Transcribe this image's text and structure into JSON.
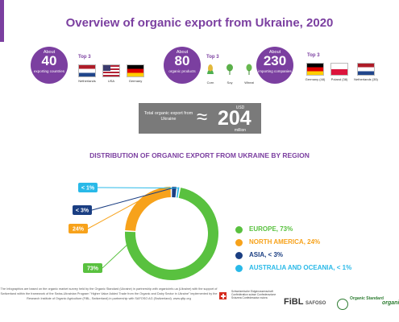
{
  "title": "Overview of organic export from Ukraine, 2020",
  "stats": [
    {
      "about": "About",
      "value": "40",
      "caption": "exporting countries",
      "top3_label": "Top 3",
      "items": [
        {
          "name": "Netherlands",
          "icon": "netherlands-flag-icon"
        },
        {
          "name": "USA",
          "icon": "usa-flag-icon"
        },
        {
          "name": "Germany",
          "icon": "germany-flag-icon"
        }
      ]
    },
    {
      "about": "About",
      "value": "80",
      "caption": "organic products",
      "top3_label": "Top 3",
      "items": [
        {
          "name": "Corn",
          "icon": "corn-icon"
        },
        {
          "name": "Soy",
          "icon": "soy-icon"
        },
        {
          "name": "Wheat",
          "icon": "wheat-icon"
        }
      ]
    },
    {
      "about": "About",
      "value": "230",
      "caption": "importing companies",
      "top3_label": "Top 3",
      "items": [
        {
          "name": "Germany (48)",
          "icon": "germany-flag-icon"
        },
        {
          "name": "Poland (38)",
          "icon": "poland-flag-icon"
        },
        {
          "name": "Netherlands (35)",
          "icon": "netherlands-flag-icon"
        }
      ]
    }
  ],
  "total": {
    "label": "Total organic export from Ukraine",
    "approx": "≈",
    "currency": "USD",
    "value": "204",
    "unit": "million"
  },
  "chart_data": {
    "type": "pie",
    "title": "DISTRIBUTION OF ORGANIC EXPORT FROM UKRAINE BY REGION",
    "series": [
      {
        "name": "EUROPE, 73%",
        "value": 73,
        "callout": "73%",
        "color": "#59c13f"
      },
      {
        "name": "NORTH AMERICA, 24%",
        "value": 24,
        "callout": "24%",
        "color": "#f7a21b"
      },
      {
        "name": "ASIA, < 3%",
        "value": 2,
        "callout": "< 3%",
        "color": "#1a3e82"
      },
      {
        "name": "AUSTRALIA AND OCEANIA, < 1%",
        "value": 1,
        "callout": "< 1%",
        "color": "#29b9e8"
      }
    ],
    "donut": true,
    "legend_position": "right"
  },
  "footer": {
    "text": "The Infographics are based on the organic market survey held by the Organic Standard (Ukraine) in partnership with organicinfo.ua (Ukraine) with the support of Switzerland within the framework of the Swiss-Ukrainian Program \"Higher Value Added Trade from the Organic and Dairy Sector in Ukraine\" implemented by the Research Institute of Organic Agriculture (FiBL, Switzerland) in partnership with SAFOSO AG (Switzerland). www.qftp.org",
    "swiss": "Schweizerische Eidgenossenschaft Confédération suisse Confederazione Svizzera Confederaziun svizra",
    "fibl": "FiBL",
    "safoso": "SAFOSO",
    "organic_standard": "Organic Standard",
    "organicinfo": "organicinfo"
  },
  "colors": {
    "accent": "#7b3fa0",
    "box": "#7a7a7a"
  }
}
